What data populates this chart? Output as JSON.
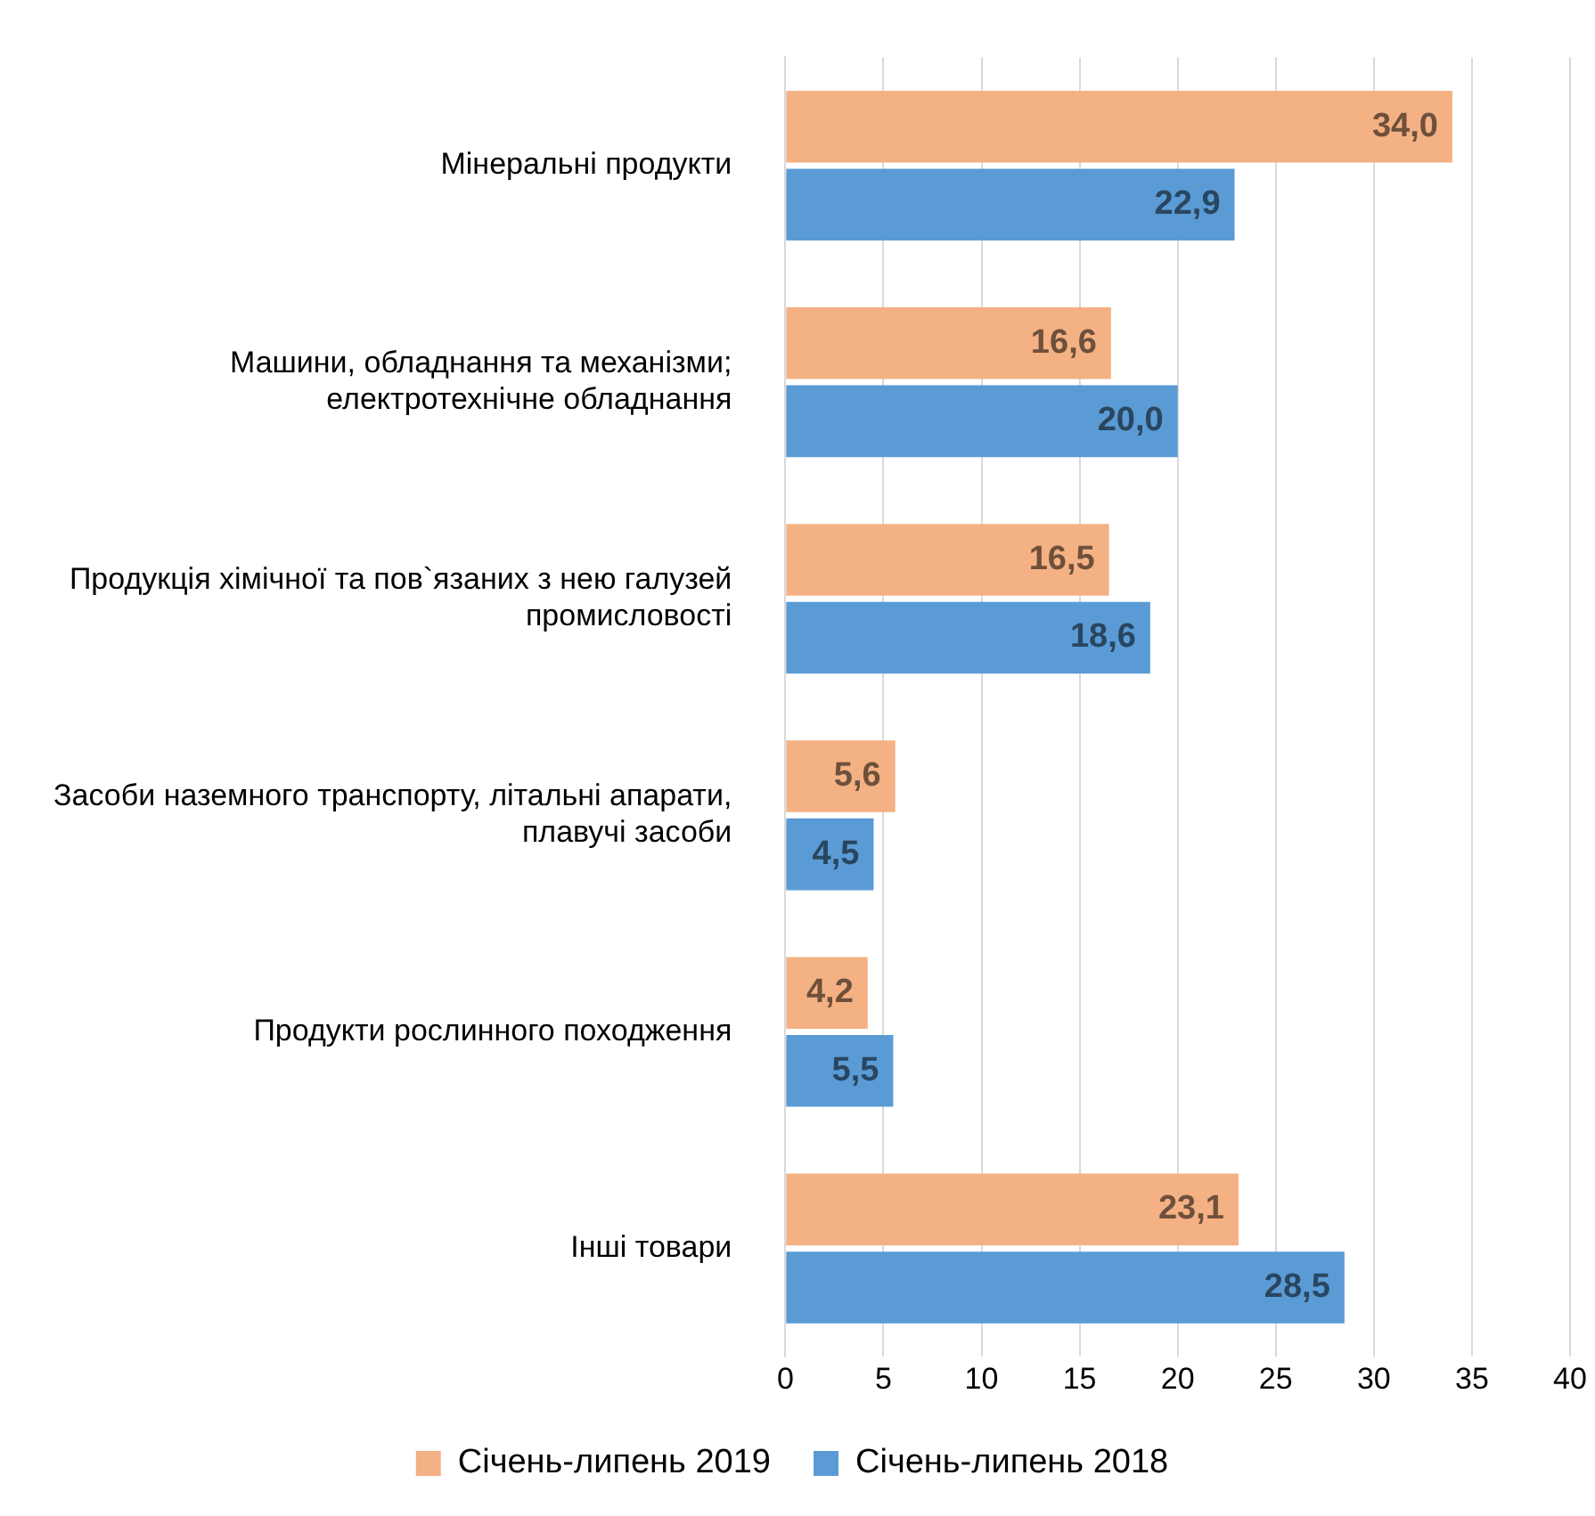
{
  "chart_data": {
    "type": "bar",
    "orientation": "horizontal",
    "categories": [
      "Мінеральні продукти",
      "Машини, обладнання та механізми; електротехнічне обладнання",
      "Продукція хімічної та пов`язаних з нею галузей промисловості",
      "Засоби наземного транспорту, літальні апарати, плавучі засоби",
      "Продукти рослинного походження",
      "Інші товари"
    ],
    "series": [
      {
        "name": "Січень-липень 2019",
        "color": "#f4b183",
        "values": [
          34.0,
          16.6,
          16.5,
          5.6,
          4.2,
          23.1
        ],
        "value_labels": [
          "34,0",
          "16,6",
          "16,5",
          "5,6",
          "4,2",
          "23,1"
        ]
      },
      {
        "name": "Січень-липень 2018",
        "color": "#5b9bd5",
        "values": [
          22.9,
          20.0,
          18.6,
          4.5,
          5.5,
          28.5
        ],
        "value_labels": [
          "22,9",
          "20,0",
          "18,6",
          "4,5",
          "5,5",
          "28,5"
        ]
      }
    ],
    "xlim": [
      0,
      40
    ],
    "xticks": [
      0,
      5,
      10,
      15,
      20,
      25,
      30,
      35,
      40
    ],
    "grid": "x",
    "legend": "bottom"
  }
}
